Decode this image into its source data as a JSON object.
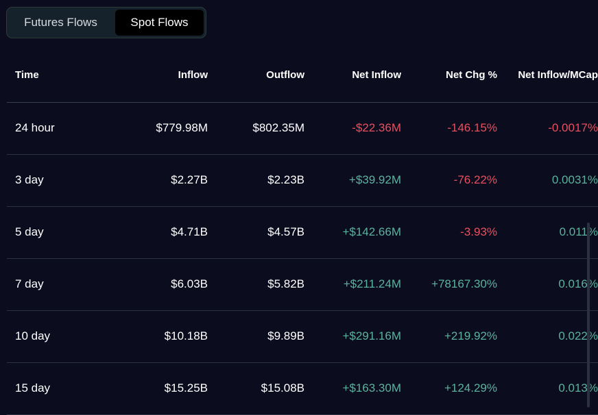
{
  "tabs": [
    {
      "label": "Futures Flows",
      "active": false
    },
    {
      "label": "Spot Flows",
      "active": true
    }
  ],
  "table": {
    "headers": [
      "Time",
      "Inflow",
      "Outflow",
      "Net Inflow",
      "Net Chg %",
      "Net Inflow/MCap"
    ],
    "rows": [
      [
        "24 hour",
        "$779.98M",
        "$802.35M",
        "-$22.36M",
        "-146.15%",
        "-0.0017%"
      ],
      [
        "3 day",
        "$2.27B",
        "$2.23B",
        "+$39.92M",
        "-76.22%",
        "0.0031%"
      ],
      [
        "5 day",
        "$4.71B",
        "$4.57B",
        "+$142.66M",
        "-3.93%",
        "0.011%"
      ],
      [
        "7 day",
        "$6.03B",
        "$5.82B",
        "+$211.24M",
        "+78167.30%",
        "0.016%"
      ],
      [
        "10 day",
        "$10.18B",
        "$9.89B",
        "+$291.16M",
        "+219.92%",
        "0.022%"
      ],
      [
        "15 day",
        "$15.25B",
        "$15.08B",
        "+$163.30M",
        "+124.29%",
        "0.013%"
      ]
    ]
  },
  "colors": {
    "background": "#0c0c1f",
    "negative": "#e8505f",
    "positive": "#5bb39e"
  }
}
